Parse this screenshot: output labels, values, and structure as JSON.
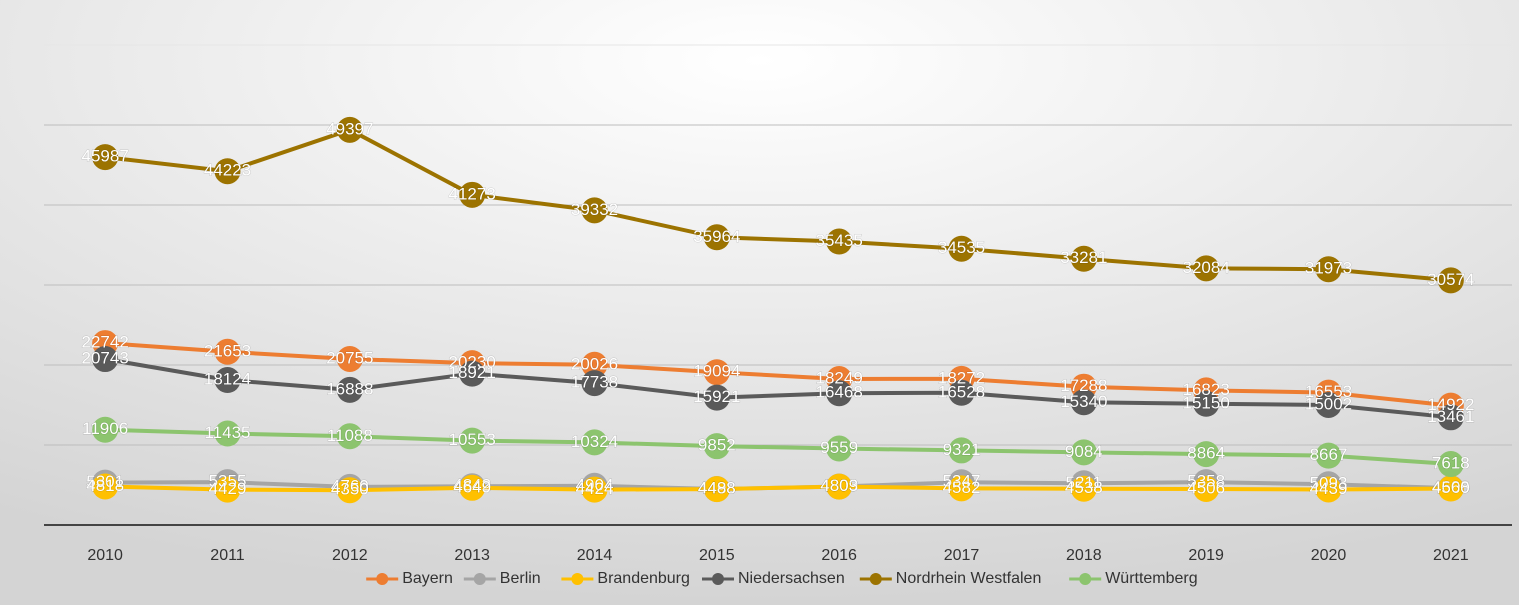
{
  "chart_data": {
    "type": "line",
    "categories": [
      "2010",
      "2011",
      "2012",
      "2013",
      "2014",
      "2015",
      "2016",
      "2017",
      "2018",
      "2019",
      "2020",
      "2021"
    ],
    "series": [
      {
        "name": "Bayern",
        "color": "#ed7d31",
        "values": [
          22742,
          21653,
          20755,
          20230,
          20026,
          19094,
          18249,
          18272,
          17288,
          16823,
          16553,
          14922
        ]
      },
      {
        "name": "Berlin",
        "color": "#a5a5a5",
        "values": [
          5301,
          5355,
          4760,
          4842,
          4904,
          4498,
          4809,
          5347,
          5211,
          5358,
          5093,
          4608
        ]
      },
      {
        "name": "Brandenburg",
        "color": "#ffc000",
        "values": [
          4818,
          4429,
          4350,
          4649,
          4424,
          4488,
          4803,
          4582,
          4538,
          4506,
          4439,
          4560
        ]
      },
      {
        "name": "Niedersachsen",
        "color": "#5a5a5a",
        "values": [
          20743,
          18124,
          16888,
          18921,
          17738,
          15921,
          16468,
          16528,
          15340,
          15150,
          15002,
          13461
        ]
      },
      {
        "name": "Nordrhein Westfalen",
        "color": "#9c7300",
        "values": [
          45987,
          44223,
          49397,
          41273,
          39332,
          35964,
          35435,
          34535,
          33281,
          32084,
          31973,
          30574
        ]
      },
      {
        "name": "Württemberg",
        "color": "#8cc46e",
        "values": [
          11906,
          11435,
          11088,
          10553,
          10324,
          9852,
          9559,
          9321,
          9084,
          8864,
          8667,
          7618
        ]
      }
    ],
    "ylim": [
      0,
      60000
    ],
    "yticks": [
      0,
      10000,
      20000,
      30000,
      40000,
      50000,
      60000
    ],
    "grid": true,
    "legend": "bottom"
  }
}
